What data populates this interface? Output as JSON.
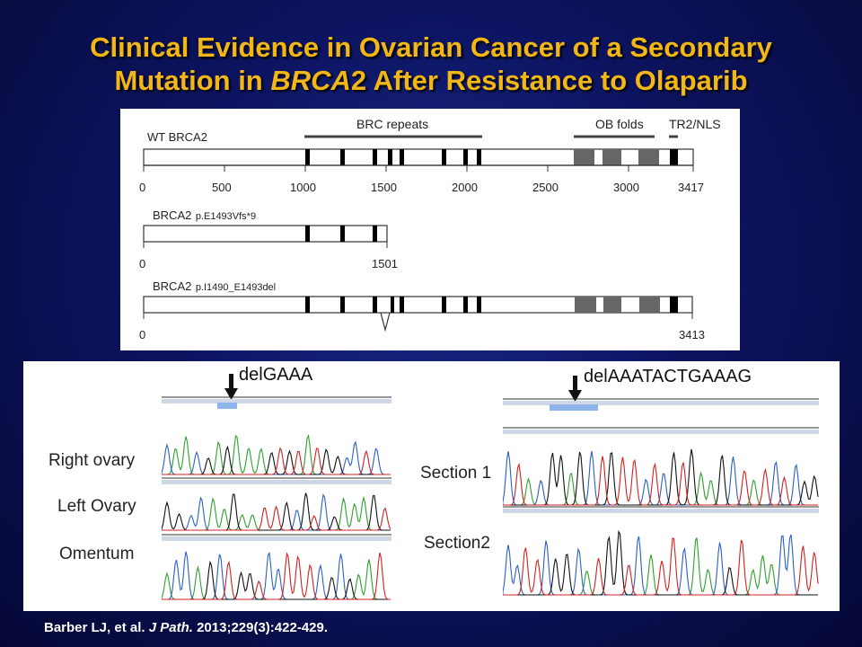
{
  "slide": {
    "title_line1": "Clinical Evidence in Ovarian Cancer of a Secondary",
    "title_line2_pre": "Mutation in ",
    "title_line2_gene": "BRCA",
    "title_line2_post": "2 After Resistance to Olaparib"
  },
  "diagram": {
    "features": {
      "brc": "BRC repeats",
      "ob": "OB folds",
      "tr2": "TR2/NLS"
    },
    "tracks": [
      {
        "label": "WT BRCA2",
        "ticks": [
          "0",
          "500",
          "1000",
          "1500",
          "2000",
          "2500",
          "3000",
          "3417"
        ]
      },
      {
        "label": "BRCA2",
        "variant": "p.E1493Vfs*9",
        "ticks": [
          "0",
          "1501"
        ]
      },
      {
        "label": "BRCA2",
        "variant": "p.I1490_E1493del",
        "ticks": [
          "0",
          "3413"
        ]
      }
    ]
  },
  "chromatograms": {
    "left": {
      "deletion": "delGAAA",
      "samples": [
        "Right ovary",
        "Left Ovary",
        "Omentum"
      ]
    },
    "right": {
      "deletion": "delAAATACTGAAAG",
      "samples": [
        "Section 1",
        "Section2"
      ]
    },
    "trace_colors": {
      "A": "#2ea02e",
      "C": "#2a5fc8",
      "G": "#111111",
      "T": "#d42020"
    }
  },
  "citation": {
    "authors": "Barber LJ, et al. ",
    "journal": "J Path.",
    "ref": " 2013;229(3):422-429."
  }
}
